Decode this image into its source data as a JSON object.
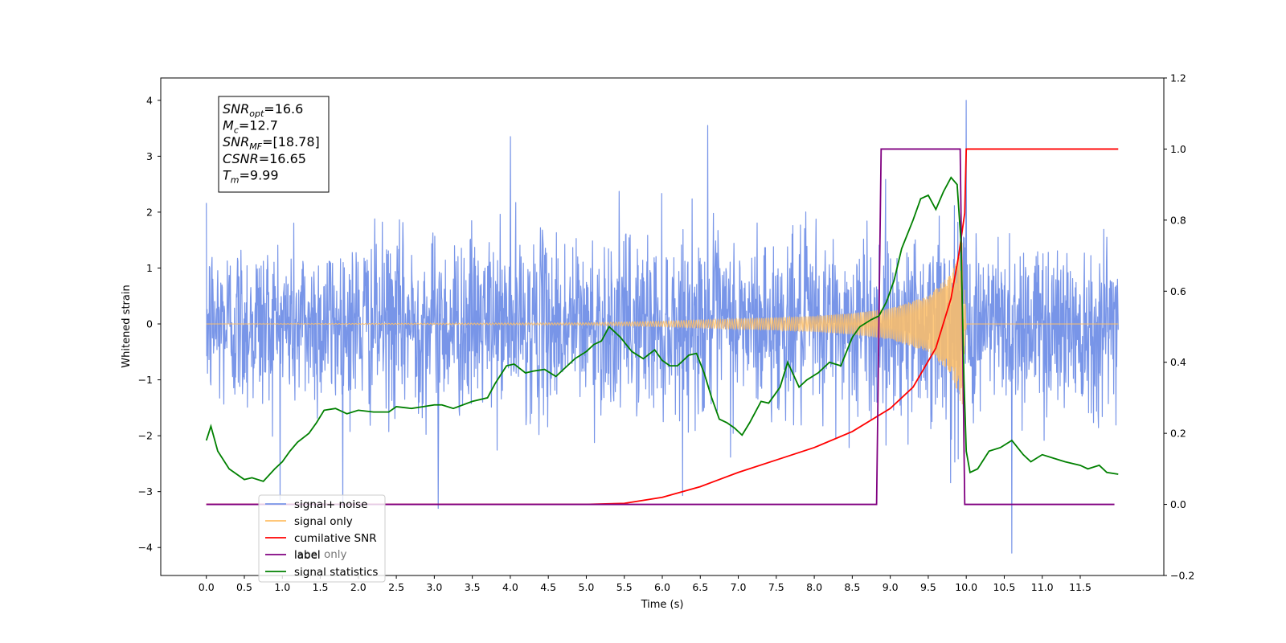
{
  "chart_data": {
    "type": "line",
    "xlabel": "Time (s)",
    "ylabel": "Whitened strain",
    "xlim": [
      -0.6,
      12.6
    ],
    "ylim_left": [
      -4.5,
      4.4
    ],
    "ylim_right": [
      -0.2,
      1.2
    ],
    "x_ticks": [
      0.0,
      0.5,
      1.0,
      1.5,
      2.0,
      2.5,
      3.0,
      3.5,
      4.0,
      4.5,
      5.0,
      5.5,
      6.0,
      6.5,
      7.0,
      7.5,
      8.0,
      8.5,
      9.0,
      9.5,
      10.0,
      10.5,
      11.0,
      11.5
    ],
    "x_tick_labels": [
      "0.0",
      "0.5",
      "1.0",
      "1.5",
      "2.0",
      "2.5",
      "3.0",
      "3.5",
      "4.0",
      "4.5",
      "5.0",
      "5.5",
      "6.0",
      "6.5",
      "7.0",
      "7.5",
      "8.0",
      "8.5",
      "9.0",
      "9.5",
      "10.0",
      "10.5",
      "11.0",
      "11.5"
    ],
    "y_left_ticks": [
      -4,
      -3,
      -2,
      -1,
      0,
      1,
      2,
      3,
      4
    ],
    "y_left_tick_labels": [
      "−4",
      "−3",
      "−2",
      "−1",
      "0",
      "1",
      "2",
      "3",
      "4"
    ],
    "y_right_ticks": [
      -0.2,
      0.0,
      0.2,
      0.4,
      0.6,
      0.8,
      1.0,
      1.2
    ],
    "y_right_tick_labels": [
      "−0.2",
      "0.0",
      "0.2",
      "0.4",
      "0.6",
      "0.8",
      "1.0",
      "1.2"
    ],
    "grid": false,
    "legend_position": "lower-left",
    "annotation_box": {
      "lines": [
        {
          "base": "SNR",
          "sub": "opt",
          "value": "=16.6"
        },
        {
          "base": "M",
          "sub": "c",
          "value": "=12.7"
        },
        {
          "base": "SNR",
          "sub": "MF",
          "value": "=[18.78]"
        },
        {
          "base": "CSNR",
          "sub": "",
          "value": "=16.65"
        },
        {
          "base": "T",
          "sub": "m",
          "value": "=9.99"
        }
      ]
    },
    "series": [
      {
        "name": "signal+ noise",
        "axis": "left",
        "color": "#7895e8",
        "description": "whitened strain, Gaussian noise of roughly unit amplitude plus chirp; spans t=0 to 12.0",
        "x_range": [
          0.0,
          12.0
        ],
        "notable_extremes": [
          [
            3.05,
            -3.3
          ],
          [
            10.0,
            4.0
          ],
          [
            10.6,
            -4.1
          ],
          [
            4.0,
            3.35
          ],
          [
            6.6,
            3.55
          ]
        ]
      },
      {
        "name": "signal only",
        "axis": "left",
        "color": "#ffbf66",
        "description": "chirp waveform, amplitude grows from ~0 to ~1.7 and ends at t=10.0",
        "x_range": [
          0.0,
          12.0
        ],
        "envelope": {
          "t": [
            0.0,
            5.0,
            6.0,
            7.0,
            8.0,
            8.5,
            9.0,
            9.5,
            9.8,
            9.95,
            10.0,
            12.0
          ],
          "amplitude": [
            0.0,
            0.02,
            0.05,
            0.09,
            0.14,
            0.19,
            0.28,
            0.5,
            0.9,
            1.5,
            0.0,
            0.0
          ]
        }
      },
      {
        "name": "cumilative SNR",
        "axis": "right",
        "color": "#ff0000",
        "x": [
          0.0,
          5.0,
          5.5,
          6.0,
          6.5,
          7.0,
          7.5,
          8.0,
          8.5,
          9.0,
          9.3,
          9.6,
          9.8,
          9.9,
          9.98,
          10.0,
          12.0
        ],
        "y": [
          0.0,
          0.0,
          0.003,
          0.02,
          0.05,
          0.09,
          0.125,
          0.16,
          0.205,
          0.27,
          0.33,
          0.44,
          0.58,
          0.7,
          0.82,
          1.0,
          1.0
        ]
      },
      {
        "name": "label",
        "axis": "right",
        "color": "#800080",
        "x": [
          0.0,
          8.82,
          8.88,
          9.92,
          9.98,
          11.95
        ],
        "y": [
          0.0,
          0.0,
          1.0,
          1.0,
          0.0,
          0.0
        ]
      },
      {
        "name": "signal statistics",
        "axis": "right",
        "color": "#008000",
        "x": [
          0.0,
          0.06,
          0.15,
          0.3,
          0.5,
          0.6,
          0.75,
          0.9,
          1.0,
          1.1,
          1.2,
          1.35,
          1.45,
          1.55,
          1.7,
          1.85,
          2.0,
          2.2,
          2.4,
          2.5,
          2.7,
          2.85,
          3.0,
          3.1,
          3.25,
          3.5,
          3.7,
          3.8,
          3.95,
          4.05,
          4.2,
          4.3,
          4.45,
          4.6,
          4.75,
          4.85,
          5.0,
          5.1,
          5.2,
          5.3,
          5.45,
          5.6,
          5.75,
          5.9,
          6.0,
          6.1,
          6.2,
          6.35,
          6.45,
          6.55,
          6.65,
          6.75,
          6.85,
          6.95,
          7.05,
          7.15,
          7.3,
          7.4,
          7.55,
          7.65,
          7.8,
          7.9,
          8.05,
          8.2,
          8.35,
          8.5,
          8.6,
          8.75,
          8.85,
          8.95,
          9.05,
          9.15,
          9.3,
          9.4,
          9.5,
          9.6,
          9.7,
          9.8,
          9.88,
          9.93,
          9.97,
          10.0,
          10.05,
          10.15,
          10.3,
          10.45,
          10.6,
          10.75,
          10.85,
          11.0,
          11.15,
          11.3,
          11.5,
          11.6,
          11.75,
          11.85,
          12.0
        ],
        "y": [
          0.18,
          0.22,
          0.15,
          0.1,
          0.07,
          0.075,
          0.065,
          0.1,
          0.12,
          0.15,
          0.175,
          0.2,
          0.23,
          0.265,
          0.27,
          0.255,
          0.265,
          0.26,
          0.26,
          0.275,
          0.27,
          0.275,
          0.28,
          0.28,
          0.27,
          0.29,
          0.3,
          0.34,
          0.39,
          0.395,
          0.37,
          0.375,
          0.38,
          0.36,
          0.39,
          0.41,
          0.43,
          0.45,
          0.46,
          0.5,
          0.47,
          0.43,
          0.41,
          0.435,
          0.405,
          0.39,
          0.39,
          0.42,
          0.425,
          0.37,
          0.3,
          0.24,
          0.23,
          0.215,
          0.195,
          0.23,
          0.29,
          0.285,
          0.33,
          0.4,
          0.33,
          0.35,
          0.37,
          0.4,
          0.39,
          0.47,
          0.5,
          0.52,
          0.53,
          0.57,
          0.63,
          0.72,
          0.8,
          0.86,
          0.87,
          0.83,
          0.88,
          0.92,
          0.9,
          0.74,
          0.35,
          0.15,
          0.09,
          0.1,
          0.15,
          0.16,
          0.18,
          0.14,
          0.12,
          0.14,
          0.13,
          0.12,
          0.11,
          0.1,
          0.11,
          0.09,
          0.085
        ]
      }
    ],
    "legend_entries": [
      "signal+ noise",
      "signal only",
      "cumilative SNR",
      "label",
      "signal statistics"
    ],
    "legend_occluded_text": "label only"
  },
  "colors": {
    "noise": "#7895e8",
    "signal": "#ffbf66",
    "cumsnr": "#ff0000",
    "label": "#800080",
    "stats": "#008000"
  }
}
